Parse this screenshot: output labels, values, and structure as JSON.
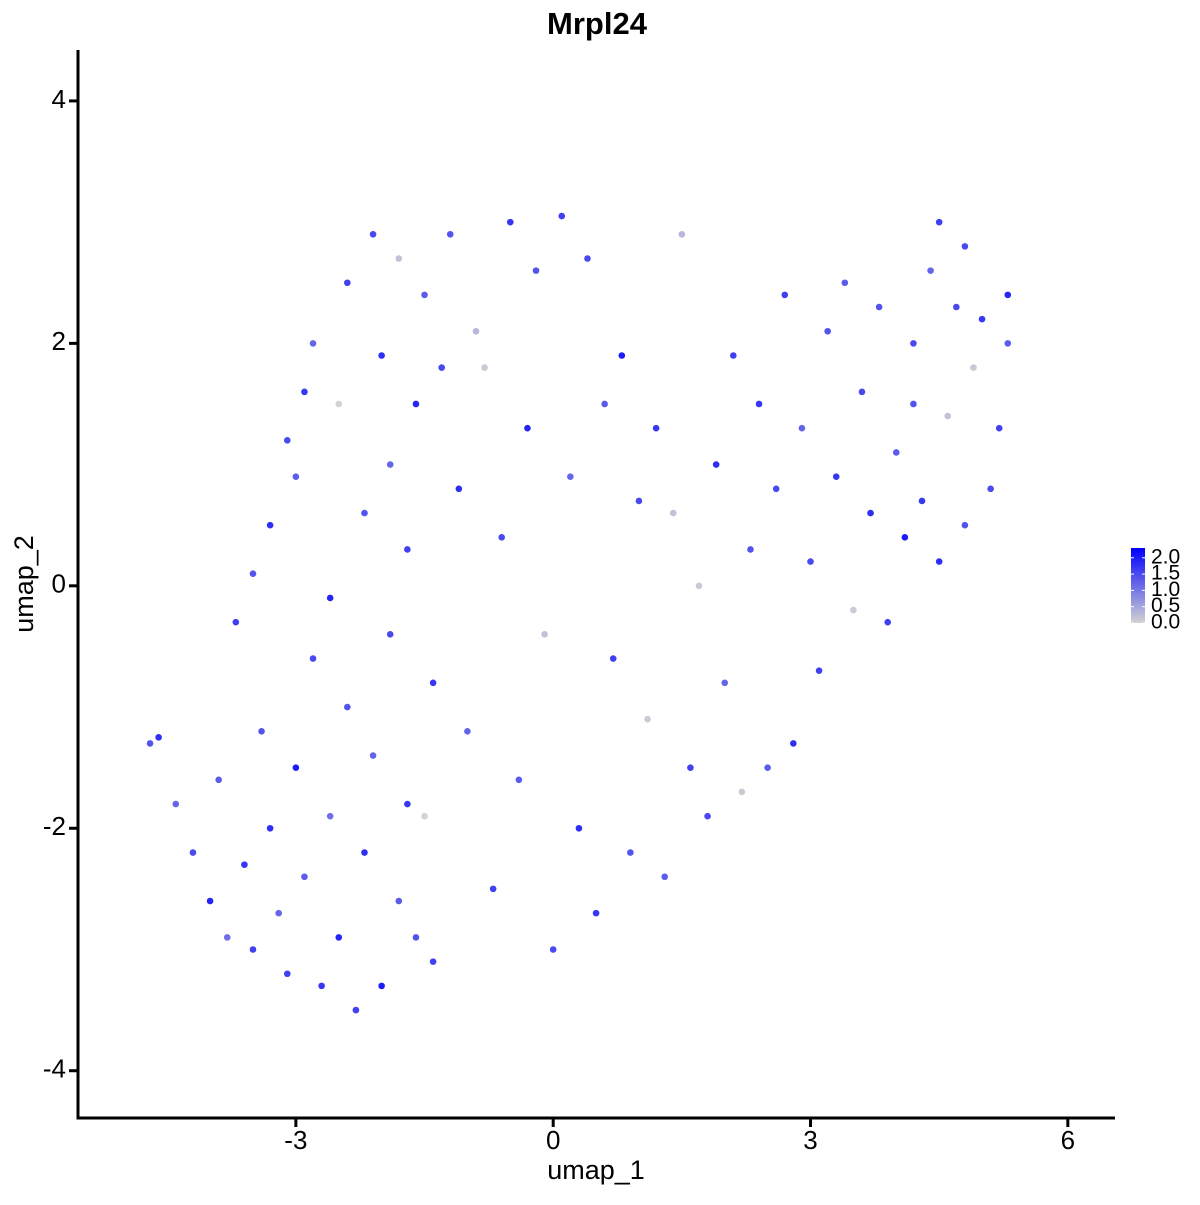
{
  "chart_data": {
    "type": "scatter",
    "title": "Mrpl24",
    "x_label": "umap_1",
    "y_label": "umap_2",
    "xlim": [
      -5.54,
      6.55
    ],
    "ylim": [
      -4.39,
      4.42
    ],
    "xticks": [
      -3,
      0,
      3,
      6
    ],
    "yticks": [
      -4,
      -2,
      0,
      2,
      4
    ],
    "colorscale": [
      "#d3d3d3",
      "#0000ff"
    ],
    "clim": [
      0,
      2.3
    ],
    "colorbar_ticks": [
      {
        "value": 0,
        "label": "0.0"
      },
      {
        "value": 0.5,
        "label": "0.5"
      },
      {
        "value": 1,
        "label": "1.0"
      },
      {
        "value": 1.5,
        "label": "1.5"
      },
      {
        "value": 2,
        "label": "2.0"
      }
    ],
    "x": [
      -4.7,
      -4.6,
      -4.4,
      -4.2,
      -4.0,
      -3.9,
      -3.8,
      -3.6,
      -3.5,
      -3.4,
      -3.3,
      -3.2,
      -3.1,
      -3.0,
      -2.9,
      -2.8,
      -2.7,
      -2.6,
      -2.5,
      -2.4,
      -2.3,
      -2.2,
      -2.1,
      -2.0,
      -1.9,
      -1.8,
      -1.7,
      -1.6,
      -1.5,
      -1.4,
      -3.7,
      -3.5,
      -3.3,
      -3.1,
      -3.0,
      -2.9,
      -2.8,
      -2.6,
      -2.5,
      -2.4,
      -2.2,
      -2.1,
      -2.0,
      -1.9,
      -1.8,
      -1.7,
      -1.6,
      -1.5,
      -1.4,
      -1.3,
      -1.2,
      -1.1,
      -1.0,
      -0.9,
      -0.8,
      -0.7,
      -0.6,
      -0.5,
      -0.4,
      -0.3,
      -0.2,
      -0.1,
      0.0,
      0.1,
      0.2,
      0.3,
      0.4,
      0.5,
      0.6,
      0.7,
      0.8,
      0.9,
      1.0,
      1.1,
      1.2,
      1.3,
      1.4,
      1.5,
      1.6,
      1.7,
      1.8,
      1.9,
      2.0,
      2.1,
      2.2,
      2.3,
      2.4,
      2.5,
      2.6,
      2.7,
      2.8,
      2.9,
      3.0,
      3.1,
      3.2,
      3.3,
      3.4,
      3.5,
      3.6,
      3.7,
      3.8,
      3.9,
      4.0,
      4.1,
      4.2,
      4.3,
      4.4,
      4.5,
      4.6,
      4.7,
      4.8,
      4.9,
      5.0,
      5.1,
      5.2,
      5.3,
      4.5,
      4.8,
      5.3,
      4.2
    ],
    "y": [
      -1.3,
      -1.25,
      -1.8,
      -2.2,
      -2.6,
      -1.6,
      -2.9,
      -2.3,
      -3.0,
      -1.2,
      -2.0,
      -2.7,
      -3.2,
      -1.5,
      -2.4,
      -0.6,
      -3.3,
      -1.9,
      -2.9,
      -1.0,
      -3.5,
      -2.2,
      -1.4,
      -3.3,
      -0.4,
      -2.6,
      -1.8,
      -2.9,
      -1.9,
      -3.1,
      -0.3,
      0.1,
      0.5,
      1.2,
      0.9,
      1.6,
      2.0,
      -0.1,
      1.5,
      2.5,
      0.6,
      2.9,
      1.9,
      1.0,
      2.7,
      0.3,
      1.5,
      2.4,
      -0.8,
      1.8,
      2.9,
      0.8,
      -1.2,
      2.1,
      1.8,
      -2.5,
      0.4,
      3.0,
      -1.6,
      1.3,
      2.6,
      -0.4,
      -3.0,
      3.05,
      0.9,
      -2.0,
      2.7,
      -2.7,
      1.5,
      -0.6,
      1.9,
      -2.2,
      0.7,
      -1.1,
      1.3,
      -2.4,
      0.6,
      2.9,
      -1.5,
      0.0,
      -1.9,
      1.0,
      -0.8,
      1.9,
      -1.7,
      0.3,
      1.5,
      -1.5,
      0.8,
      2.4,
      -1.3,
      1.3,
      0.2,
      -0.7,
      2.1,
      0.9,
      2.5,
      -0.2,
      1.6,
      0.6,
      2.3,
      -0.3,
      1.1,
      0.4,
      2.0,
      0.7,
      2.6,
      3.0,
      1.4,
      2.3,
      0.5,
      1.8,
      2.2,
      0.8,
      1.3,
      2.0,
      0.2,
      2.8,
      2.4,
      1.5
    ],
    "values": [
      1.4,
      1.8,
      1.2,
      1.5,
      1.9,
      1.3,
      1.1,
      1.7,
      1.6,
      1.4,
      1.8,
      1.2,
      1.6,
      2.0,
      1.3,
      1.5,
      1.7,
      1.1,
      1.9,
      1.4,
      1.6,
      1.8,
      1.2,
      2.0,
      1.5,
      1.3,
      1.7,
      1.4,
      0.0,
      1.6,
      1.6,
      1.4,
      1.8,
      1.5,
      1.3,
      1.7,
      1.2,
      1.9,
      0.0,
      1.6,
      1.4,
      1.5,
      1.8,
      1.2,
      0.2,
      1.6,
      1.9,
      1.3,
      1.7,
      1.5,
      1.4,
      1.8,
      1.2,
      0.3,
      0.1,
      1.6,
      1.5,
      1.7,
      1.3,
      1.9,
      1.4,
      0.2,
      1.5,
      1.6,
      1.2,
      1.8,
      1.5,
      1.7,
      1.3,
      1.6,
      2.0,
      1.4,
      1.5,
      0.1,
      1.7,
      1.3,
      0.2,
      0.3,
      1.6,
      0.1,
      1.5,
      1.8,
      1.2,
      1.6,
      0.1,
      1.4,
      1.7,
      1.3,
      1.5,
      1.6,
      1.8,
      1.2,
      1.5,
      1.6,
      1.4,
      1.7,
      1.3,
      0.1,
      1.5,
      1.8,
      1.4,
      1.6,
      1.3,
      2.0,
      1.5,
      1.7,
      1.2,
      1.6,
      0.2,
      1.5,
      1.4,
      0.1,
      1.7,
      1.5,
      1.6,
      1.3,
      1.8,
      1.5,
      1.9,
      1.4
    ]
  }
}
